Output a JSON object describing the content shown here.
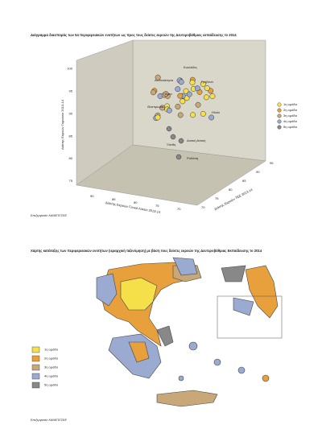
{
  "figure1": {
    "title": "Διάγραμμα διασποράς των 54 περιφερειακών ενοτήτων ως προς τους δείκτες εκροών της Δευτεροβάθμιας εκπαίδευσης το 2014",
    "axis_labels": {
      "vertical": "Δείκτης Εκροών Γυμνάσιο 2013-14",
      "depth": "Δείκτης Εκροών Γενικό Λύκειο 2013-14",
      "horizontal": "Δείκτης Εκροών ΤΕΕ 2013-14"
    },
    "ticks": {
      "vertical": [
        "75",
        "80",
        "85",
        "90",
        "95",
        "100"
      ],
      "depth": [
        "90",
        "85",
        "80",
        "75",
        "70"
      ],
      "horizontal": [
        "70",
        "75",
        "80",
        "85",
        "90",
        "95"
      ]
    },
    "point_labels": [
      "Κυκλάδες",
      "Δωδεκάνησα",
      "Άρτα",
      "Γρεβενά",
      "Θεσπρωτία",
      "Ηλεία",
      "Ξάνθη",
      "Δυτική Αττική",
      "Ροδόπη"
    ],
    "legend": [
      "1η ομάδα",
      "2η ομάδα",
      "3η ομάδα",
      "4η ομάδα",
      "5η ομάδα"
    ],
    "source": "Επεξεργασία: ΚΑΝΕΠ/ΓΣΕΕ"
  },
  "figure2": {
    "title": "Χάρτης κατάταξης των περιφερειακών ενοτήτων (ιεραρχική ταξινόμηση) με βάση τους δείκτες εκροών της Δευτεροβάθμιας Εκπαίδευσης το 2014",
    "legend": [
      "1η ομάδα",
      "2η ομάδα",
      "3η ομάδα",
      "4η ομάδα",
      "5η ομάδα"
    ],
    "source": "Επεξεργασία: ΚΑΝΕΠ/ΓΣΕΕ"
  }
}
